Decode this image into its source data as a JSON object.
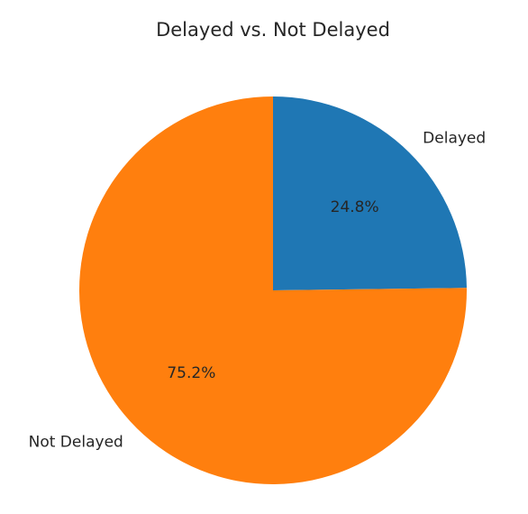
{
  "chart_data": {
    "type": "pie",
    "title": "Delayed vs. Not Delayed",
    "start_angle": 90,
    "direction": "clockwise",
    "slices": [
      {
        "label": "Delayed",
        "value": 24.8,
        "pct_label": "24.8%",
        "color": "#1f77b4"
      },
      {
        "label": "Not Delayed",
        "value": 75.2,
        "pct_label": "75.2%",
        "color": "#ff7f0e"
      }
    ]
  }
}
